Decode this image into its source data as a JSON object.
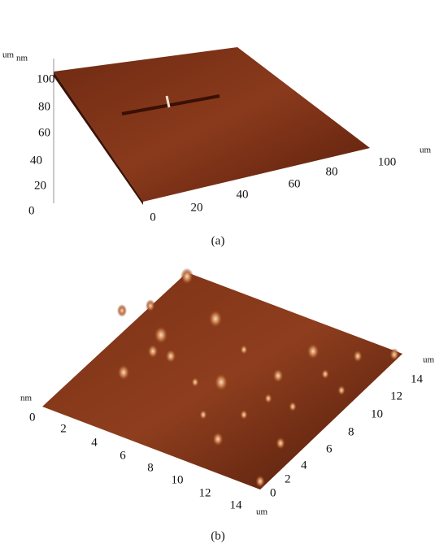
{
  "panels": [
    {
      "unit_left_a": "um",
      "unit_left_b": "nm",
      "left_ticks": [
        "100",
        "80",
        "60",
        "40",
        "20",
        "0"
      ],
      "bottom_ticks": [
        "0",
        "20",
        "40",
        "60",
        "80",
        "100"
      ],
      "bottom_unit": "um",
      "caption": "(a)"
    },
    {
      "unit_left": "nm",
      "left_tick": "0",
      "bottom_ticks": [
        "2",
        "4",
        "6",
        "8",
        "10",
        "12",
        "14"
      ],
      "bottom_unit": "um",
      "right_ticks": [
        "0",
        "2",
        "4",
        "6",
        "8",
        "10",
        "12",
        "14"
      ],
      "right_unit": "um",
      "caption": "(b)"
    }
  ]
}
